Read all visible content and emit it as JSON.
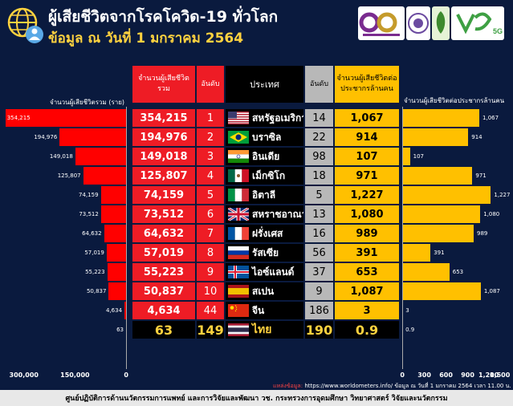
{
  "title": "ผู้เสียชีวิตจากโรคโควิด-19 ทั่วโลก",
  "subtitle": "ข้อมูล ณ วันที่ 1 มกราคม 2564",
  "headers": {
    "deaths": "จำนวนผู้เสียชีวิตรวม",
    "rank1": "อันดับ",
    "country": "ประเทศ",
    "rank2": "อันดับ",
    "per_million": "จำนวนผู้เสียชีวิตต่อประชากรล้านคน"
  },
  "left_axis_title": "จำนวนผู้เสียชีวิตรวม (ราย)",
  "right_axis_title": "จำนวนผู้เสียชีวิตต่อประชากรล้านคน",
  "source": {
    "label": "แหล่งข้อมูล:",
    "text": "https://www.worldometers.info/ ข้อมูล ณ วันที่ 1 มกราคม 2564 เวลา 11.00 น."
  },
  "footer": "ศูนย์ปฏิบัติการด้านนวัตกรรมการแพทย์ และการวิจัยและพัฒนา วช.   กระทรวงการอุดมศึกษา วิทยาศาสตร์ วิจัยและนวัตกรรม",
  "logos": {
    "logo4_text": "5G"
  },
  "chart_data": {
    "type": "bar",
    "title": "ผู้เสียชีวิตจากโรคโควิด-19 ทั่วโลก",
    "left_series": {
      "name": "จำนวนผู้เสียชีวิตรวม (ราย)",
      "ticks": [
        "300,000",
        "150,000",
        "0"
      ],
      "tick_values": [
        300000,
        150000,
        0
      ],
      "xlim": [
        0,
        330000
      ]
    },
    "right_series": {
      "name": "จำนวนผู้เสียชีวิตต่อประชากรล้านคน",
      "ticks": [
        "0",
        "300",
        "600",
        "900",
        "1,200",
        "1,500"
      ],
      "tick_values": [
        0,
        300,
        600,
        900,
        1200,
        1500
      ],
      "xlim": [
        0,
        1500
      ]
    },
    "rows": [
      {
        "deaths": 354215,
        "deaths_label": "354,215",
        "rank": "1",
        "country": "สหรัฐอเมริกา",
        "flag": "us",
        "rank2": "14",
        "per_million": 1067,
        "per_million_label": "1,067"
      },
      {
        "deaths": 194976,
        "deaths_label": "194,976",
        "rank": "2",
        "country": "บราซิล",
        "flag": "br",
        "rank2": "22",
        "per_million": 914,
        "per_million_label": "914"
      },
      {
        "deaths": 149018,
        "deaths_label": "149,018",
        "rank": "3",
        "country": "อินเดีย",
        "flag": "in",
        "rank2": "98",
        "per_million": 107,
        "per_million_label": "107"
      },
      {
        "deaths": 125807,
        "deaths_label": "125,807",
        "rank": "4",
        "country": "เม็กซิโก",
        "flag": "mx",
        "rank2": "18",
        "per_million": 971,
        "per_million_label": "971"
      },
      {
        "deaths": 74159,
        "deaths_label": "74,159",
        "rank": "5",
        "country": "อิตาลี",
        "flag": "it",
        "rank2": "5",
        "per_million": 1227,
        "per_million_label": "1,227"
      },
      {
        "deaths": 73512,
        "deaths_label": "73,512",
        "rank": "6",
        "country": "สหราชอาณาจักร",
        "flag": "gb",
        "rank2": "13",
        "per_million": 1080,
        "per_million_label": "1,080"
      },
      {
        "deaths": 64632,
        "deaths_label": "64,632",
        "rank": "7",
        "country": "ฝรั่งเศส",
        "flag": "fr",
        "rank2": "16",
        "per_million": 989,
        "per_million_label": "989"
      },
      {
        "deaths": 57019,
        "deaths_label": "57,019",
        "rank": "8",
        "country": "รัสเซีย",
        "flag": "ru",
        "rank2": "56",
        "per_million": 391,
        "per_million_label": "391"
      },
      {
        "deaths": 55223,
        "deaths_label": "55,223",
        "rank": "9",
        "country": "ไอซ์แลนด์",
        "flag": "is",
        "rank2": "37",
        "per_million": 653,
        "per_million_label": "653"
      },
      {
        "deaths": 50837,
        "deaths_label": "50,837",
        "rank": "10",
        "country": "สเปน",
        "flag": "es",
        "rank2": "9",
        "per_million": 1087,
        "per_million_label": "1,087"
      },
      {
        "deaths": 4634,
        "deaths_label": "4,634",
        "rank": "44",
        "country": "จีน",
        "flag": "cn",
        "rank2": "186",
        "per_million": 3,
        "per_million_label": "3"
      },
      {
        "deaths": 63,
        "deaths_label": "63",
        "rank": "149",
        "country": "ไทย",
        "flag": "th",
        "rank2": "190",
        "per_million": 0.9,
        "per_million_label": "0.9",
        "highlight": true
      }
    ]
  }
}
